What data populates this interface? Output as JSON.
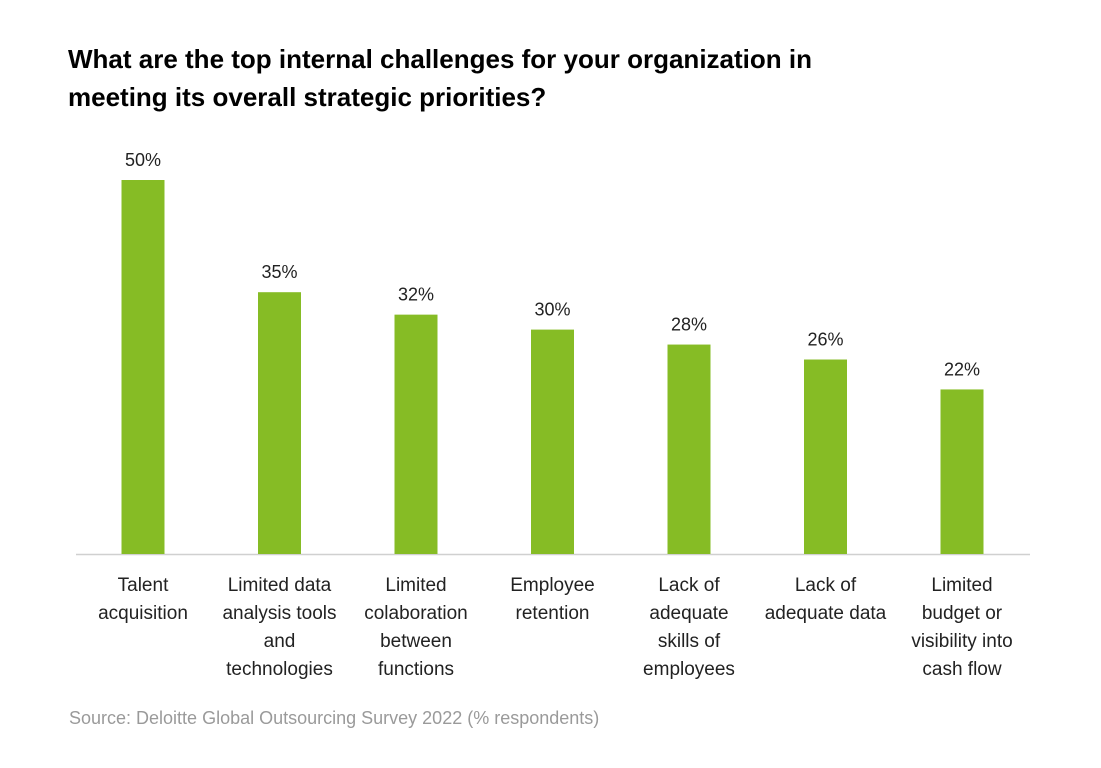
{
  "chart_data": {
    "type": "bar",
    "title_lines": [
      "What are the top internal challenges for your organization in",
      "meeting its overall strategic priorities?"
    ],
    "categories": [
      [
        "Talent",
        "acquisition"
      ],
      [
        "Limited data",
        "analysis tools",
        "and",
        "technologies"
      ],
      [
        "Limited",
        "colaboration",
        "between",
        "functions"
      ],
      [
        "Employee",
        "retention"
      ],
      [
        "Lack of",
        "adequate",
        "skills of",
        "employees"
      ],
      [
        "Lack of",
        "adequate data"
      ],
      [
        "Limited",
        "budget or",
        "visibility into",
        "cash flow"
      ]
    ],
    "values": [
      50,
      35,
      32,
      30,
      28,
      26,
      22
    ],
    "data_labels": [
      "50%",
      "35%",
      "32%",
      "30%",
      "28%",
      "26%",
      "22%"
    ],
    "ylim": [
      0,
      50
    ],
    "bar_color": "#86bc25",
    "axis_color": "#d0d0d0",
    "grid": false,
    "legend": "none",
    "source": "Source: Deloitte Global Outsourcing Survey 2022 (% respondents)"
  }
}
